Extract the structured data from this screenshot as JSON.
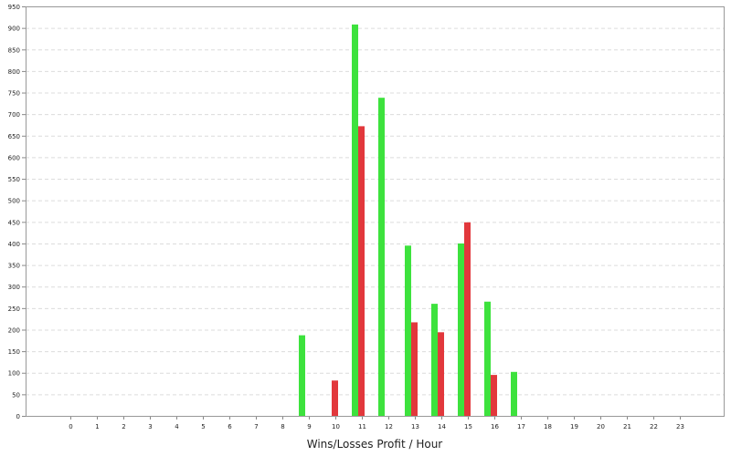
{
  "chart_data": {
    "type": "bar",
    "xlabel": "Wins/Losses Profit / Hour",
    "ylabel": "",
    "title": "",
    "ylim": [
      0,
      950
    ],
    "y_ticks": [
      0,
      50,
      100,
      150,
      200,
      250,
      300,
      350,
      400,
      450,
      500,
      550,
      600,
      650,
      700,
      750,
      800,
      850,
      900,
      950
    ],
    "categories": [
      "0",
      "1",
      "2",
      "3",
      "4",
      "5",
      "6",
      "7",
      "8",
      "9",
      "10",
      "11",
      "12",
      "13",
      "14",
      "15",
      "16",
      "17",
      "18",
      "19",
      "20",
      "21",
      "22",
      "23"
    ],
    "grid": true,
    "series": [
      {
        "color": "#3de23d",
        "values": [
          0,
          0,
          0,
          0,
          0,
          0,
          0,
          0,
          0,
          187,
          0,
          908,
          738,
          395,
          260,
          400,
          265,
          102,
          0,
          0,
          0,
          0,
          0,
          0
        ]
      },
      {
        "color": "#e2383c",
        "values": [
          0,
          0,
          0,
          0,
          0,
          0,
          0,
          0,
          0,
          0,
          82,
          672,
          0,
          217,
          194,
          449,
          95,
          0,
          0,
          0,
          0,
          0,
          0,
          0
        ]
      }
    ]
  }
}
